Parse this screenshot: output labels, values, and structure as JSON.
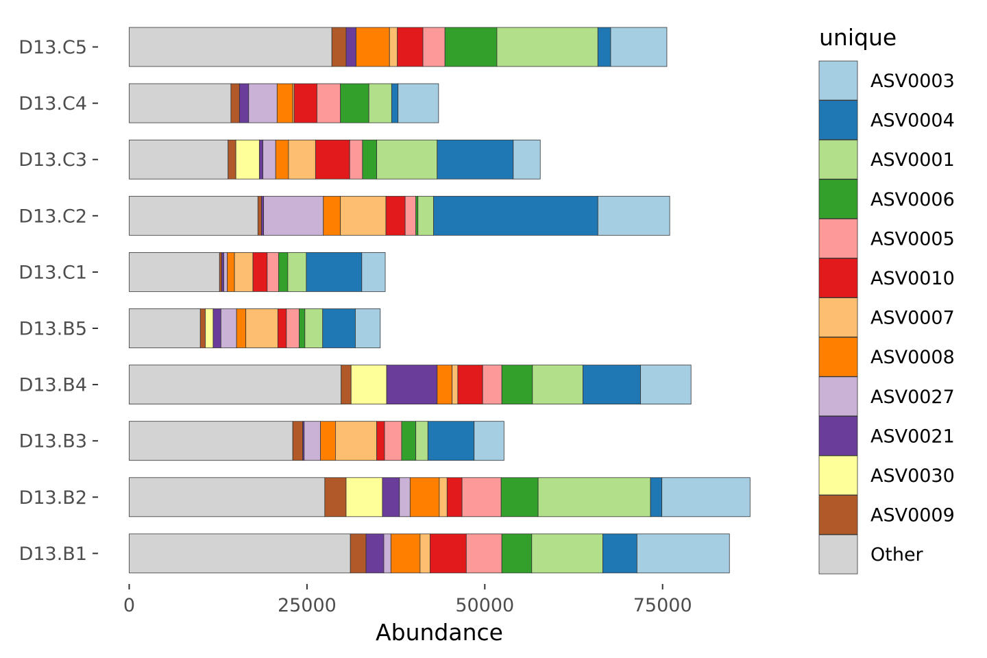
{
  "chart_data": {
    "type": "bar",
    "orientation": "horizontal",
    "stacked": true,
    "title": "",
    "xlabel": "Abundance",
    "ylabel": "",
    "xlim": [
      0,
      87000
    ],
    "x_ticks": [
      0,
      25000,
      50000,
      75000
    ],
    "grid": false,
    "legend_title": "unique",
    "legend_position": "right",
    "categories": [
      "D13.C5",
      "D13.C4",
      "D13.C3",
      "D13.C2",
      "D13.C1",
      "D13.B5",
      "D13.B4",
      "D13.B3",
      "D13.B2",
      "D13.B1"
    ],
    "series": [
      {
        "name": "Other",
        "color": "#d3d3d3",
        "values": [
          28500,
          14300,
          13900,
          18100,
          12700,
          10000,
          29800,
          23000,
          27500,
          31100
        ]
      },
      {
        "name": "ASV0009",
        "color": "#b15928",
        "values": [
          2000,
          1200,
          1100,
          500,
          300,
          700,
          1400,
          1400,
          3000,
          2200
        ]
      },
      {
        "name": "ASV0030",
        "color": "#ffff99",
        "values": [
          0,
          0,
          3300,
          0,
          0,
          1100,
          5000,
          0,
          5100,
          0
        ]
      },
      {
        "name": "ASV0021",
        "color": "#6a3d9a",
        "values": [
          1400,
          1300,
          500,
          300,
          300,
          1100,
          7100,
          200,
          2400,
          2500
        ]
      },
      {
        "name": "ASV0027",
        "color": "#cab2d6",
        "values": [
          0,
          4000,
          1800,
          8400,
          500,
          2200,
          0,
          2300,
          1500,
          1000
        ]
      },
      {
        "name": "ASV0008",
        "color": "#ff7f00",
        "values": [
          4700,
          2200,
          1800,
          2400,
          1000,
          1300,
          2100,
          2100,
          4100,
          4100
        ]
      },
      {
        "name": "ASV0007",
        "color": "#fdbf6f",
        "values": [
          1100,
          200,
          3800,
          6400,
          2600,
          4500,
          800,
          5800,
          1100,
          1400
        ]
      },
      {
        "name": "ASV0010",
        "color": "#e31a1c",
        "values": [
          3600,
          3200,
          4800,
          2700,
          2000,
          1200,
          3500,
          1100,
          2100,
          5100
        ]
      },
      {
        "name": "ASV0005",
        "color": "#fb9a99",
        "values": [
          3100,
          3300,
          1800,
          1500,
          1600,
          1800,
          2700,
          2400,
          5500,
          5000
        ]
      },
      {
        "name": "ASV0006",
        "color": "#33a02c",
        "values": [
          7300,
          4000,
          2000,
          300,
          1300,
          800,
          4300,
          2000,
          5200,
          4200
        ]
      },
      {
        "name": "ASV0001",
        "color": "#b2df8a",
        "values": [
          14200,
          3200,
          8500,
          2200,
          2600,
          2500,
          7100,
          1700,
          15800,
          10000
        ]
      },
      {
        "name": "ASV0004",
        "color": "#1f78b4",
        "values": [
          1800,
          900,
          10700,
          23100,
          7800,
          4600,
          8100,
          6500,
          1600,
          4800
        ]
      },
      {
        "name": "ASV0003",
        "color": "#a6cee3",
        "values": [
          7900,
          5700,
          3800,
          10100,
          3300,
          3500,
          7100,
          4200,
          12400,
          13000
        ]
      }
    ],
    "legend_order": [
      "ASV0003",
      "ASV0004",
      "ASV0001",
      "ASV0006",
      "ASV0005",
      "ASV0010",
      "ASV0007",
      "ASV0008",
      "ASV0027",
      "ASV0021",
      "ASV0030",
      "ASV0009",
      "Other"
    ]
  }
}
